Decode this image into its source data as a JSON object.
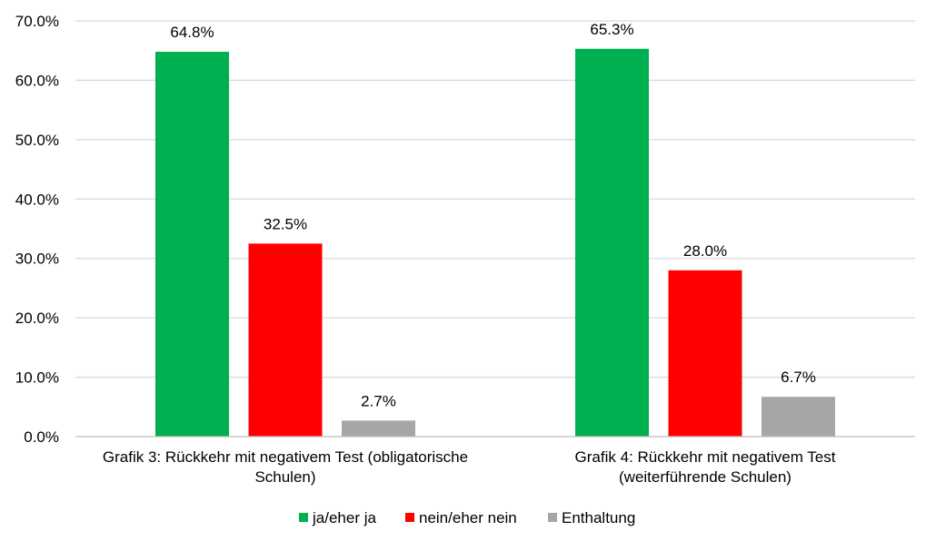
{
  "chart_data": {
    "type": "bar",
    "categories": [
      "Grafik 3: Rückkehr mit negativem Test (obligatorische Schulen)",
      "Grafik 4: Rückkehr mit negativem Test (weiterführende Schulen)"
    ],
    "category_lines": [
      [
        "Grafik 3: Rückkehr mit negativem Test (obligatorische",
        "Schulen)"
      ],
      [
        "Grafik 4: Rückkehr mit negativem Test",
        "(weiterführende Schulen)"
      ]
    ],
    "series": [
      {
        "name": "ja/eher ja",
        "color": "#00b050",
        "values": [
          64.8,
          65.3
        ],
        "labels": [
          "64.8%",
          "65.3%"
        ]
      },
      {
        "name": "nein/eher nein",
        "color": "#ff0000",
        "values": [
          32.5,
          28.0
        ],
        "labels": [
          "32.5%",
          "28.0%"
        ]
      },
      {
        "name": "Enthaltung",
        "color": "#a6a6a6",
        "values": [
          2.7,
          6.7
        ],
        "labels": [
          "2.7%",
          "6.7%"
        ]
      }
    ],
    "ylim": [
      0,
      70
    ],
    "yticks": [
      {
        "value": 0,
        "label": "0.0%"
      },
      {
        "value": 10,
        "label": "10.0%"
      },
      {
        "value": 20,
        "label": "20.0%"
      },
      {
        "value": 30,
        "label": "30.0%"
      },
      {
        "value": 40,
        "label": "40.0%"
      },
      {
        "value": 50,
        "label": "50.0%"
      },
      {
        "value": 60,
        "label": "60.0%"
      },
      {
        "value": 70,
        "label": "70.0%"
      }
    ],
    "grid": true,
    "legend_position": "bottom",
    "gridline_color": "#d9d9d9",
    "axis_color": "#bfbfbf"
  }
}
